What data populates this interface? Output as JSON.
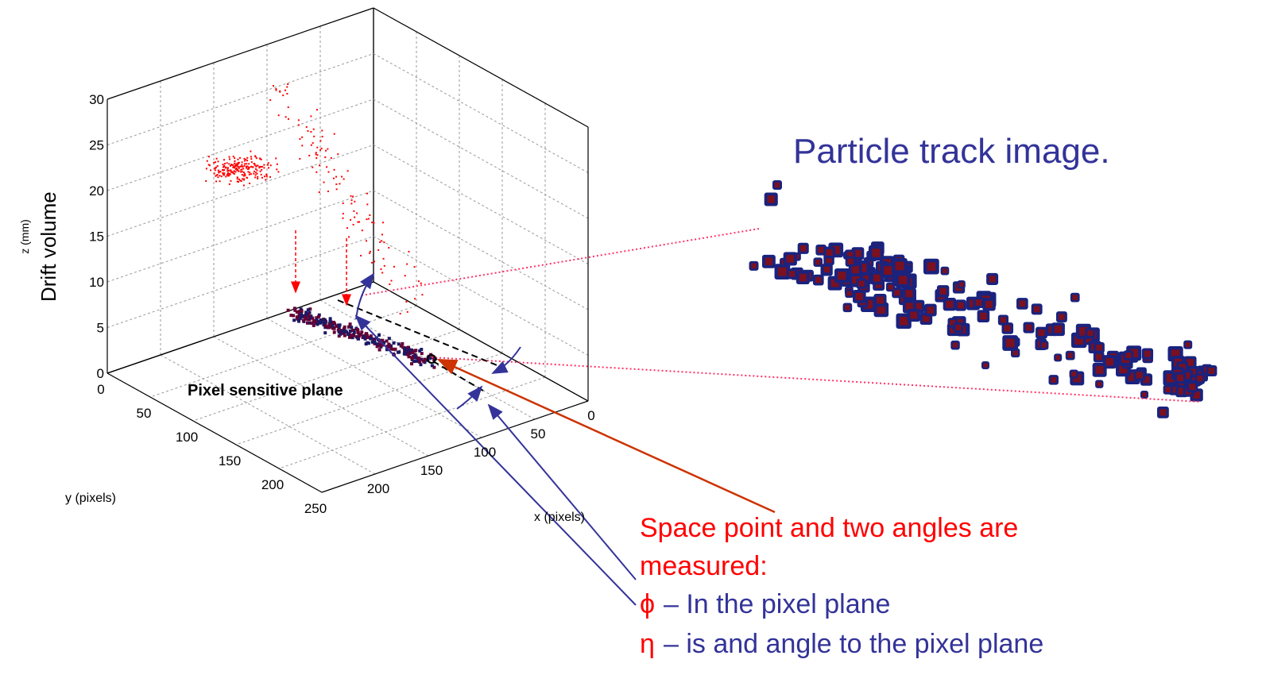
{
  "title": "Particle track image.",
  "plot": {
    "z_label": "z (mm)",
    "drift_label": "Drift volume",
    "x_label": "x (pixels)",
    "y_label": "y (pixels)",
    "plane_label": "Pixel sensitive plane",
    "z_ticks": [
      "0",
      "5",
      "10",
      "15",
      "20",
      "25",
      "30"
    ],
    "x_ticks": [
      "0",
      "50",
      "100",
      "150",
      "200"
    ],
    "y_ticks": [
      "0",
      "50",
      "100",
      "150",
      "200",
      "250"
    ]
  },
  "annotation": {
    "lines": [
      "Space point and two angles are",
      "measured:"
    ],
    "items": [
      {
        "symbol": "ϕ",
        "text": "– In the pixel plane"
      },
      {
        "symbol": "η",
        "text": "– is and angle to the pixel plane"
      }
    ]
  }
}
